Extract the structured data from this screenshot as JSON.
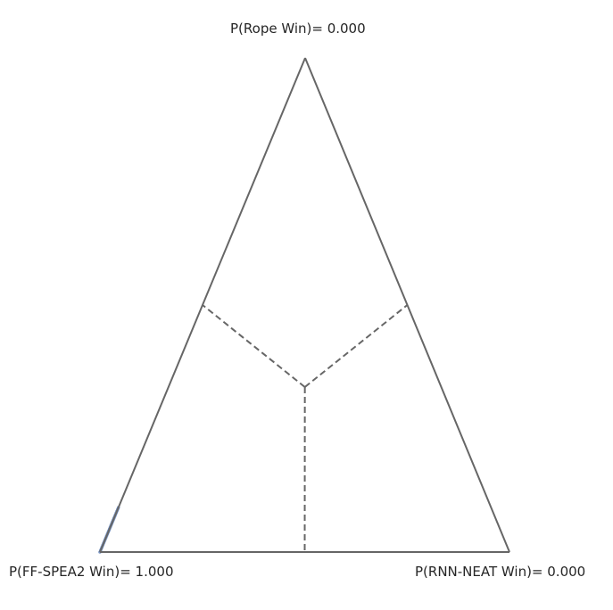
{
  "chart_data": {
    "type": "scatter",
    "title": "",
    "vertex_labels": {
      "top": "P(Rope Win)= 0.000",
      "left": "P(FF-SPEA2 Win)= 1.000",
      "right": "P(RNN-NEAT Win)= 0.000"
    },
    "vertices": {
      "top": "Rope",
      "left": "FF-SPEA2",
      "right": "RNN-NEAT"
    },
    "series": [
      {
        "marker_color": "#4c72b0",
        "points": [
          {
            "rope": 0.0,
            "ff": 1.0,
            "rnn": 0.0
          },
          {
            "rope": 0.0036,
            "ff": 0.9964,
            "rnn": 0.0
          },
          {
            "rope": 0.0072,
            "ff": 0.9928,
            "rnn": 0.0
          },
          {
            "rope": 0.0108,
            "ff": 0.9892,
            "rnn": 0.0
          },
          {
            "rope": 0.0144,
            "ff": 0.9856,
            "rnn": 0.0
          },
          {
            "rope": 0.018,
            "ff": 0.982,
            "rnn": 0.0
          },
          {
            "rope": 0.0216,
            "ff": 0.9784,
            "rnn": 0.0
          },
          {
            "rope": 0.0252,
            "ff": 0.9748,
            "rnn": 0.0
          },
          {
            "rope": 0.0288,
            "ff": 0.9712,
            "rnn": 0.0
          },
          {
            "rope": 0.0324,
            "ff": 0.9676,
            "rnn": 0.0
          },
          {
            "rope": 0.036,
            "ff": 0.964,
            "rnn": 0.0
          },
          {
            "rope": 0.0396,
            "ff": 0.9604,
            "rnn": 0.0
          },
          {
            "rope": 0.0432,
            "ff": 0.9568,
            "rnn": 0.0
          },
          {
            "rope": 0.0468,
            "ff": 0.9532,
            "rnn": 0.0
          },
          {
            "rope": 0.0504,
            "ff": 0.9496,
            "rnn": 0.0
          },
          {
            "rope": 0.054,
            "ff": 0.946,
            "rnn": 0.0
          },
          {
            "rope": 0.0576,
            "ff": 0.9424,
            "rnn": 0.0
          },
          {
            "rope": 0.0612,
            "ff": 0.9388,
            "rnn": 0.0
          },
          {
            "rope": 0.0648,
            "ff": 0.9352,
            "rnn": 0.0
          },
          {
            "rope": 0.0684,
            "ff": 0.9316,
            "rnn": 0.0
          },
          {
            "rope": 0.072,
            "ff": 0.928,
            "rnn": 0.0
          },
          {
            "rope": 0.0756,
            "ff": 0.9244,
            "rnn": 0.0
          },
          {
            "rope": 0.0792,
            "ff": 0.9208,
            "rnn": 0.0
          },
          {
            "rope": 0.0828,
            "ff": 0.9172,
            "rnn": 0.0
          },
          {
            "rope": 0.0864,
            "ff": 0.9136,
            "rnn": 0.0
          },
          {
            "rope": 0.09,
            "ff": 0.91,
            "rnn": 0.0
          }
        ]
      }
    ],
    "grid": false,
    "center_lines": "dashed",
    "frame_color": "#666666"
  }
}
